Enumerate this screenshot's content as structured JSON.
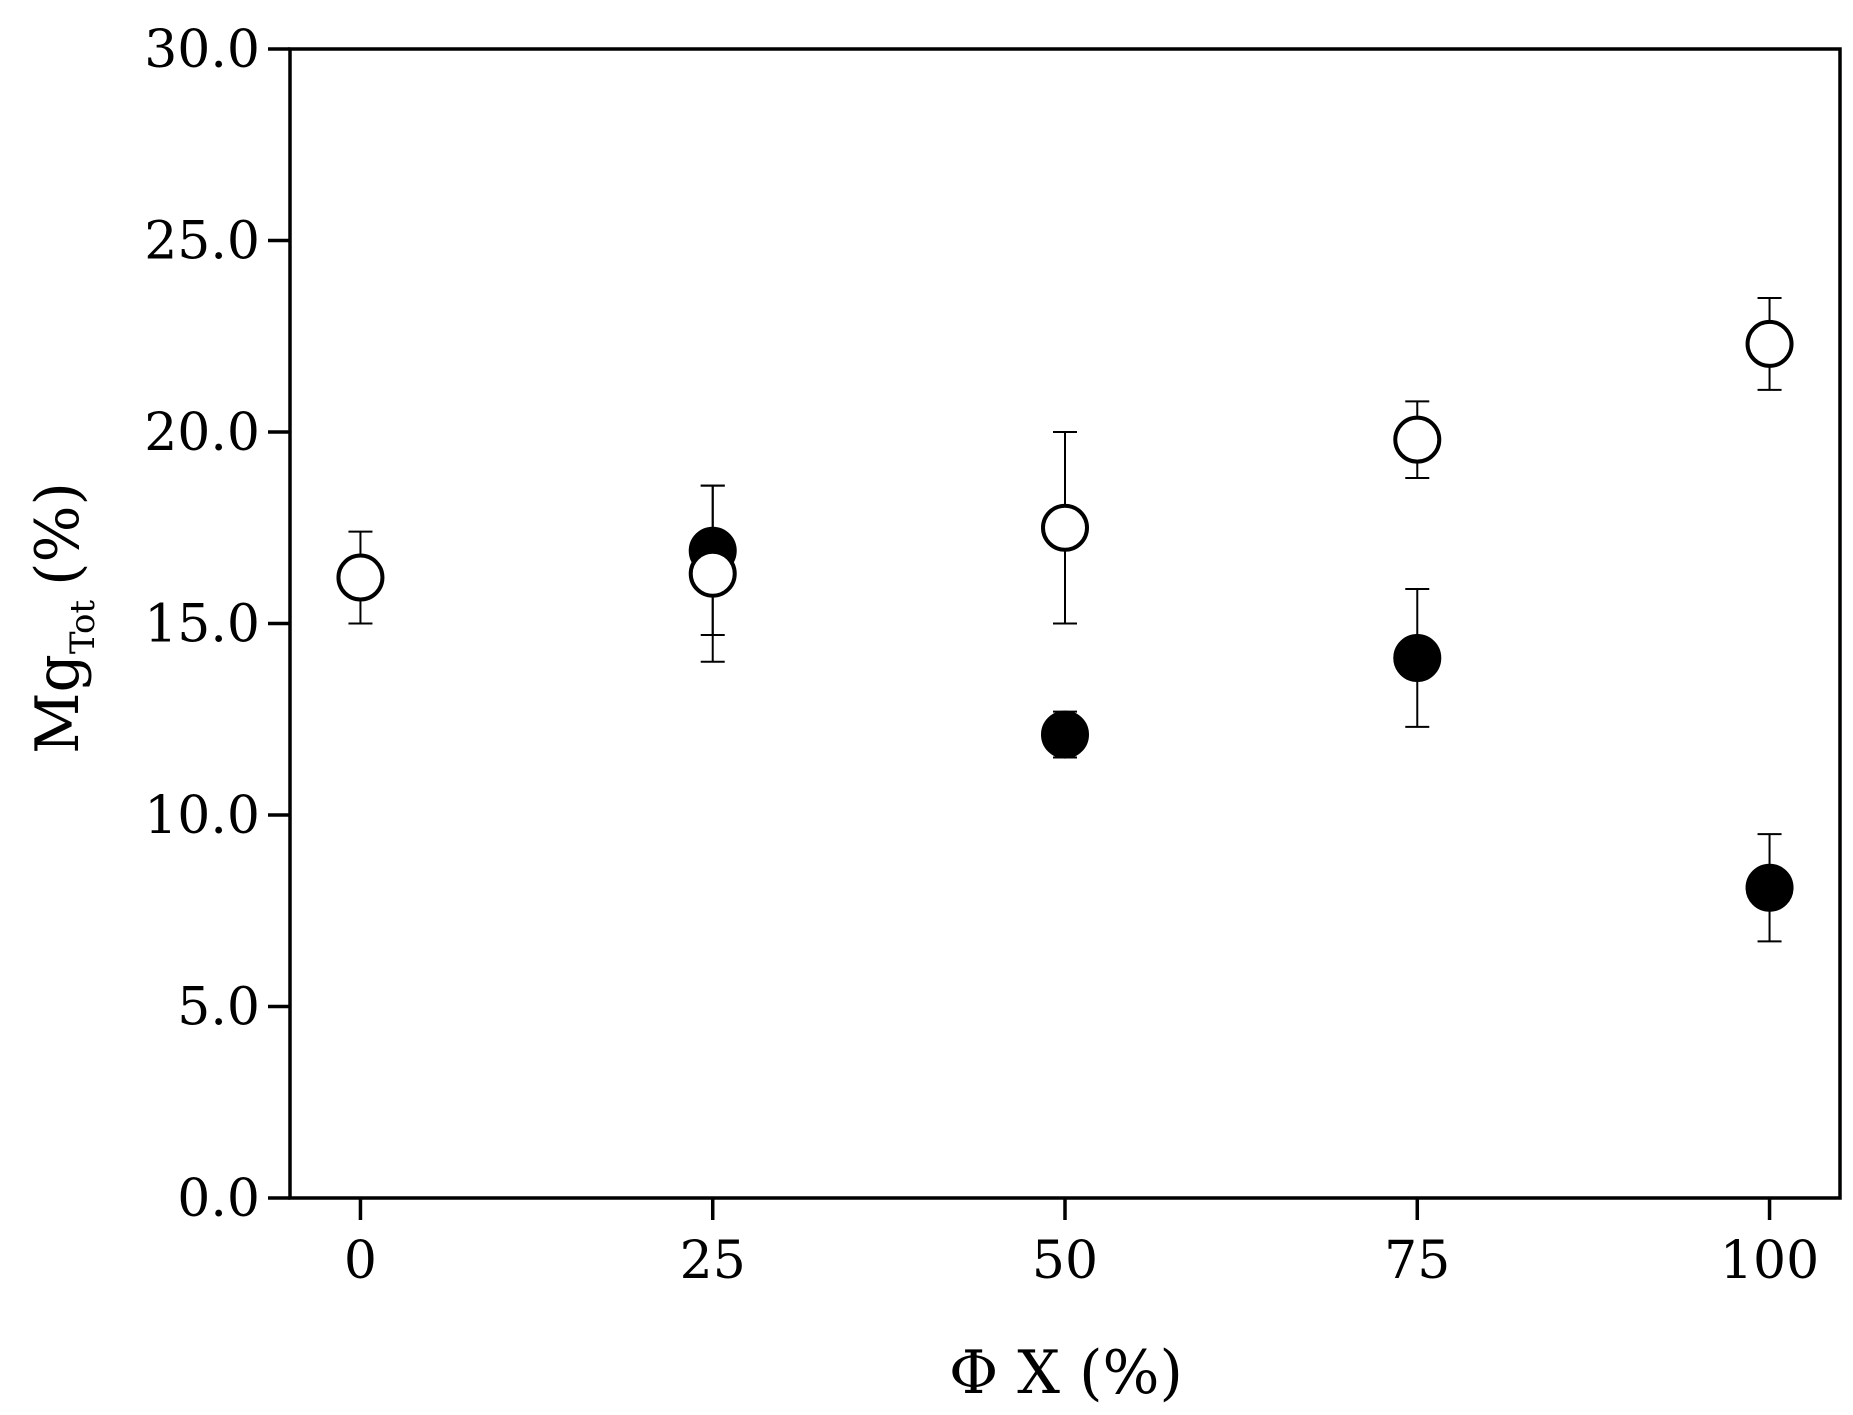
{
  "chart_data": {
    "type": "scatter",
    "title": "",
    "xlabel": "Φ X (%)",
    "ylabel": {
      "main": "Mg",
      "subscript": "Tot",
      "unit": "(%)"
    },
    "xlim": [
      -5,
      105
    ],
    "ylim": [
      0,
      30
    ],
    "xticks": [
      0,
      25,
      50,
      75,
      100
    ],
    "xtick_labels": [
      "0",
      "25",
      "50",
      "75",
      "100"
    ],
    "yticks": [
      0,
      5,
      10,
      15,
      20,
      25,
      30
    ],
    "ytick_labels": [
      "0.0",
      "5.0",
      "10.0",
      "15.0",
      "20.0",
      "25.0",
      "30.0"
    ],
    "grid": false,
    "legend": "none",
    "series": [
      {
        "marker": "filled-circle",
        "color": "#000000",
        "points": [
          {
            "x": 25,
            "y": 16.9,
            "err_low": 2.2,
            "err_high": 1.7
          },
          {
            "x": 50,
            "y": 12.1,
            "err_low": 0.6,
            "err_high": 0.6
          },
          {
            "x": 75,
            "y": 14.1,
            "err_low": 1.8,
            "err_high": 1.8
          },
          {
            "x": 100,
            "y": 8.1,
            "err_low": 1.4,
            "err_high": 1.4
          }
        ]
      },
      {
        "marker": "open-circle",
        "color": "#000000",
        "points": [
          {
            "x": 0,
            "y": 16.2,
            "err_low": 1.2,
            "err_high": 1.2
          },
          {
            "x": 25,
            "y": 16.3,
            "err_low": 2.3,
            "err_high": 2.3
          },
          {
            "x": 50,
            "y": 17.5,
            "err_low": 2.5,
            "err_high": 2.5
          },
          {
            "x": 75,
            "y": 19.8,
            "err_low": 1.0,
            "err_high": 1.0
          },
          {
            "x": 100,
            "y": 22.3,
            "err_low": 1.2,
            "err_high": 1.2
          }
        ]
      }
    ]
  }
}
